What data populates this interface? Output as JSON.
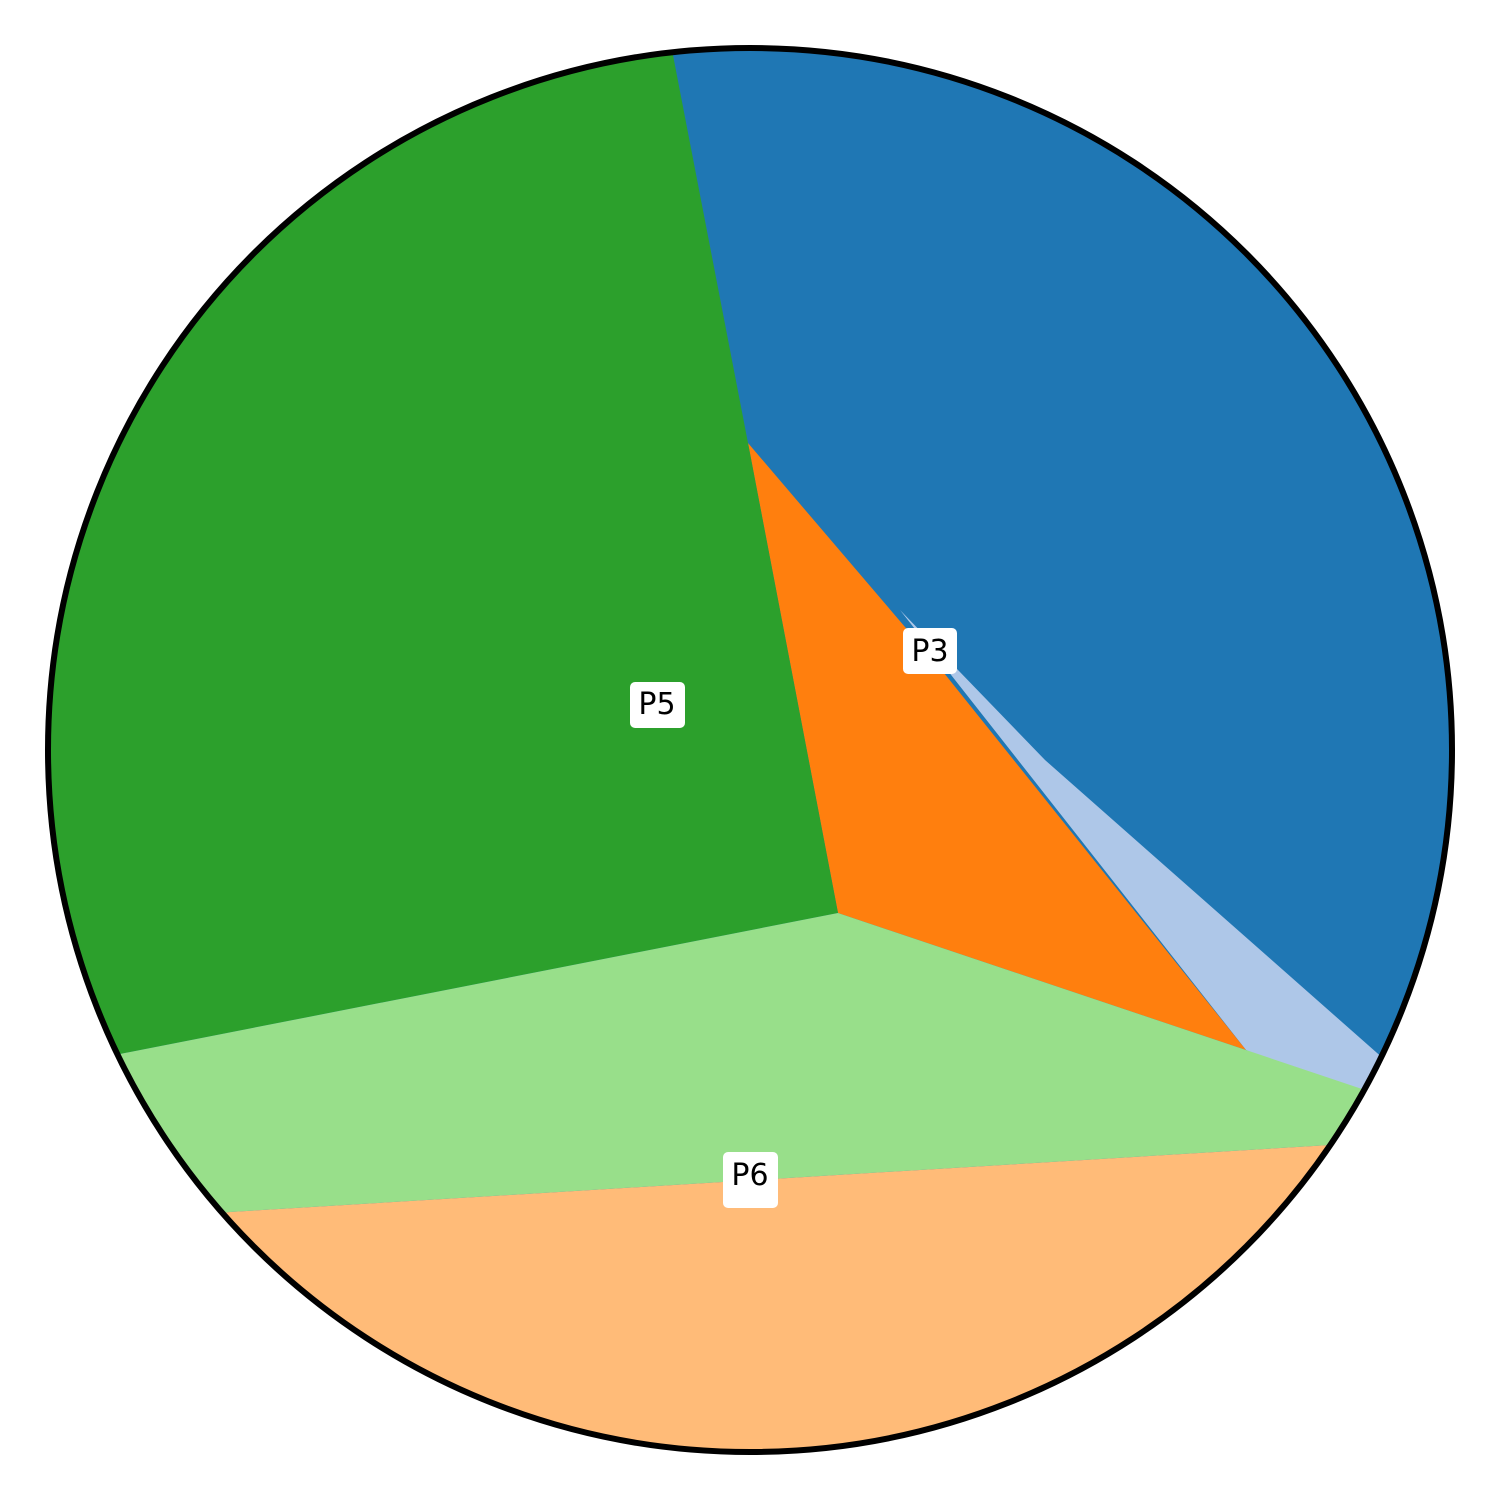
{
  "diagram": {
    "type": "region-map",
    "regions": [
      {
        "id": "r-blue",
        "color": "#1f77b4",
        "label": ""
      },
      {
        "id": "r-lightblue",
        "color": "#aec7e8",
        "label": ""
      },
      {
        "id": "r-orange",
        "color": "#ff7f0e",
        "label": "P3"
      },
      {
        "id": "r-green",
        "color": "#2ca02c",
        "label": "P5"
      },
      {
        "id": "r-lightgreen",
        "color": "#98df8a",
        "label": "P6"
      },
      {
        "id": "r-peach",
        "color": "#ffbb78",
        "label": ""
      }
    ],
    "labels": {
      "p3": "P3",
      "p5": "P5",
      "p6": "P6"
    },
    "outline_color": "#000000"
  }
}
